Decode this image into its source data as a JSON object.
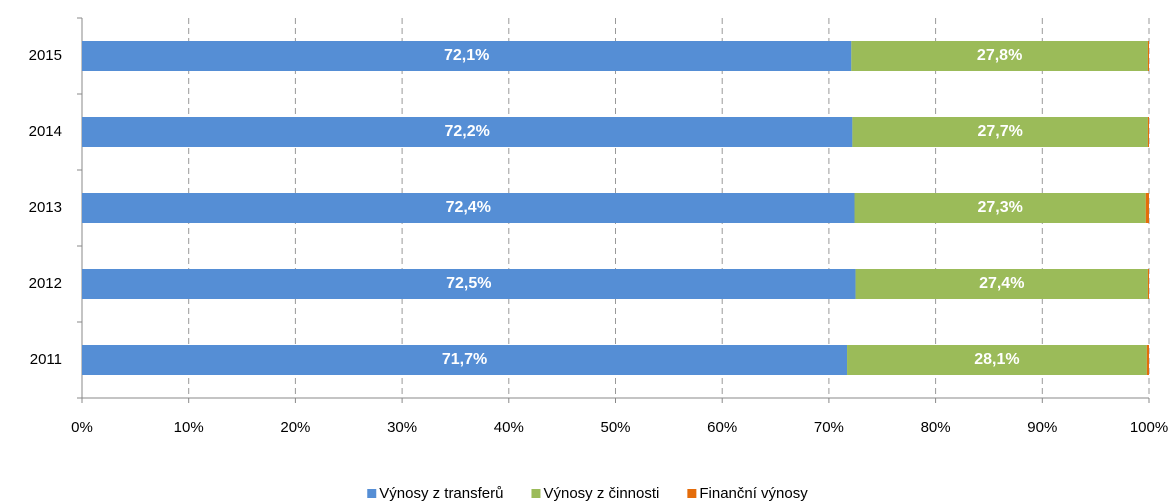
{
  "chart_data": {
    "type": "stacked-bar-horizontal",
    "categories": [
      "2011",
      "2012",
      "2013",
      "2014",
      "2015"
    ],
    "series": [
      {
        "name": "Výnosy z transferů",
        "color": "#558ed5",
        "values": [
          71.7,
          72.5,
          72.4,
          72.2,
          72.1
        ],
        "value_labels": [
          "71,7%",
          "72,5%",
          "72,4%",
          "72,2%",
          "72,1%"
        ]
      },
      {
        "name": "Výnosy z činnosti",
        "color": "#9bbb59",
        "values": [
          28.1,
          27.4,
          27.3,
          27.7,
          27.8
        ],
        "value_labels": [
          "28,1%",
          "27,4%",
          "27,3%",
          "27,7%",
          "27,8%"
        ]
      },
      {
        "name": "Finanční výnosy",
        "color": "#e46c0a",
        "values": [
          0.2,
          0.1,
          0.3,
          0.1,
          0.1
        ]
      }
    ],
    "xlim": [
      0,
      100
    ],
    "xticks": [
      {
        "value": 0,
        "label": "0%"
      },
      {
        "value": 10,
        "label": "10%"
      },
      {
        "value": 20,
        "label": "20%"
      },
      {
        "value": 30,
        "label": "30%"
      },
      {
        "value": 40,
        "label": "40%"
      },
      {
        "value": 50,
        "label": "50%"
      },
      {
        "value": 60,
        "label": "60%"
      },
      {
        "value": 70,
        "label": "70%"
      },
      {
        "value": 80,
        "label": "80%"
      },
      {
        "value": 90,
        "label": "90%"
      },
      {
        "value": 100,
        "label": "100%"
      }
    ],
    "grid": true,
    "legend": "bottom"
  }
}
